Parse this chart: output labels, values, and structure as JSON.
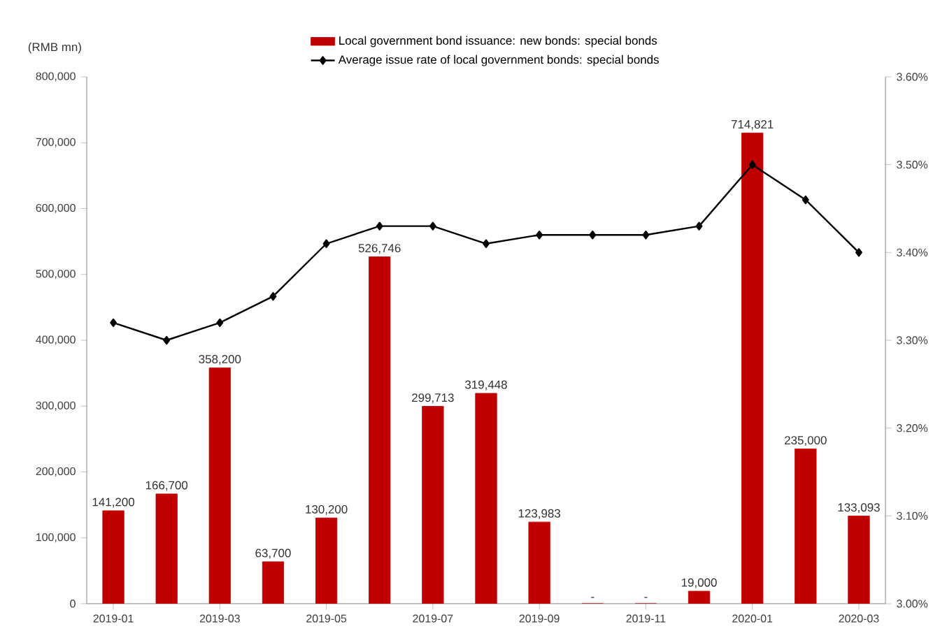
{
  "chart_data": {
    "type": "bar",
    "ylabel": "(RMB mn)",
    "categories": [
      "2019-01",
      null,
      "2019-03",
      null,
      "2019-05",
      null,
      "2019-07",
      null,
      "2019-09",
      null,
      "2019-11",
      null,
      "2020-01",
      null,
      "2020-03"
    ],
    "series": [
      {
        "name": "Local government bond issuance: new bonds: special bonds",
        "color": "#c00000",
        "values": [
          141200,
          166700,
          358200,
          63700,
          130200,
          526746,
          299713,
          319448,
          123983,
          0,
          0,
          19000,
          714821,
          235000,
          133093
        ],
        "value_labels": [
          "141,200",
          "166,700",
          "358,200",
          "63,700",
          "130,200",
          "526,746",
          "299,713",
          "319,448",
          "123,983",
          "-",
          "-",
          "19,000",
          "714,821",
          "235,000",
          "133,093"
        ]
      },
      {
        "name": "Average issue rate of local government bonds: special bonds",
        "type": "line",
        "axis": "y2",
        "color": "#000000",
        "marker": "diamond",
        "line_style": "solid",
        "values": [
          3.32,
          3.3,
          3.32,
          3.35,
          3.41,
          3.43,
          3.43,
          3.41,
          3.42,
          3.42,
          3.42,
          3.43,
          3.5,
          3.46,
          3.4
        ]
      }
    ],
    "ylim": [
      0,
      800000
    ],
    "yticks": [
      {
        "value": 0,
        "label": "0"
      },
      {
        "value": 100000,
        "label": "100,000"
      },
      {
        "value": 200000,
        "label": "200,000"
      },
      {
        "value": 300000,
        "label": "300,000"
      },
      {
        "value": 400000,
        "label": "400,000"
      },
      {
        "value": 500000,
        "label": "500,000"
      },
      {
        "value": 600000,
        "label": "600,000"
      },
      {
        "value": 700000,
        "label": "700,000"
      },
      {
        "value": 800000,
        "label": "800,000"
      }
    ],
    "y2lim": [
      3.0,
      3.6
    ],
    "y2ticks": [
      {
        "value": 3.0,
        "label": "3.00%"
      },
      {
        "value": 3.1,
        "label": "3.10%"
      },
      {
        "value": 3.2,
        "label": "3.20%"
      },
      {
        "value": 3.3,
        "label": "3.30%"
      },
      {
        "value": 3.4,
        "label": "3.40%"
      },
      {
        "value": 3.5,
        "label": "3.50%"
      },
      {
        "value": 3.6,
        "label": "3.60%"
      }
    ],
    "legend": "top",
    "grid": false
  }
}
